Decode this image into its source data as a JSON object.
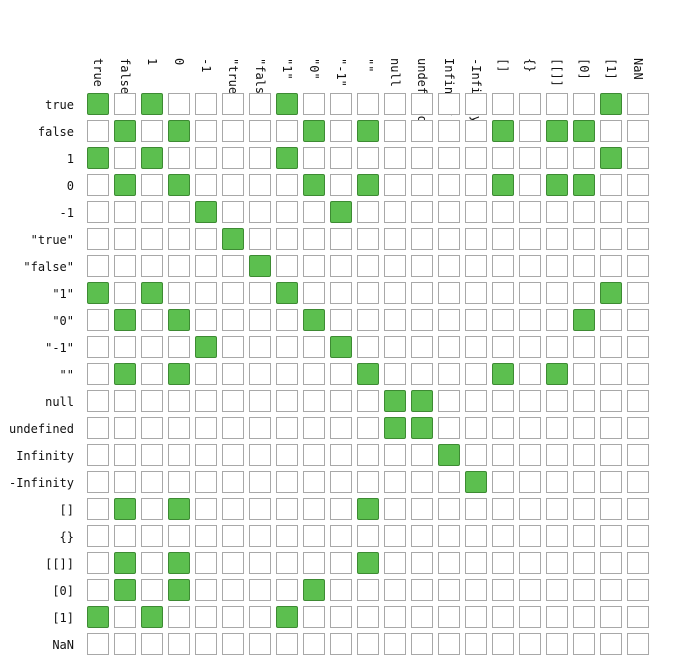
{
  "labels": [
    "true",
    "false",
    "1",
    "0",
    "-1",
    "\"true\"",
    "\"false\"",
    "\"1\"",
    "\"0\"",
    "\"-1\"",
    "\"\"",
    "null",
    "undefined",
    "Infinity",
    "-Infinity",
    "[]",
    "{}",
    "[[]]",
    "[0]",
    "[1]",
    "NaN"
  ],
  "colors": {
    "equal": "#5cbf4f",
    "not_equal": "#ffffff",
    "grid": "#a8a8a8"
  },
  "matrix": [
    "101000010000000000010",
    "010100001010000101100",
    "101000010000000000010",
    "010100001010000101100",
    "000010000100000000000",
    "000001000000000000000",
    "000000100000000000000",
    "101000010000000000010",
    "010100001000000000100",
    "000010000100000000000",
    "010100000010000101000",
    "000000000001100000000",
    "000000000001100000000",
    "000000000000010000000",
    "000000000000001000000",
    "010100000010000000000",
    "000000000000000000000",
    "010100000010000000000",
    "010100001000000000000",
    "101000010000000000000",
    "000000000000000000000"
  ]
}
